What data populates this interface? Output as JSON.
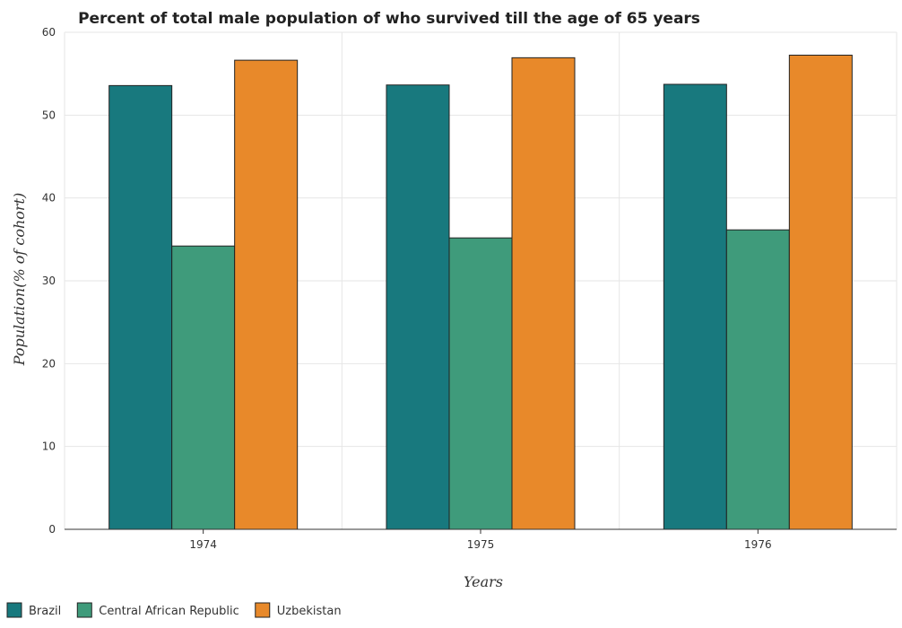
{
  "chart_data": {
    "type": "bar",
    "title": "Percent of total male population of who survived till the age of 65 years",
    "xlabel": "Years",
    "ylabel": "Population(% of cohort)",
    "categories": [
      "1974",
      "1975",
      "1976"
    ],
    "ylim": [
      0,
      60
    ],
    "yticks": [
      0,
      10,
      20,
      30,
      40,
      50,
      60
    ],
    "grid": true,
    "legend_position": "bottom-left",
    "series": [
      {
        "name": "Brazil",
        "color": "#18797e",
        "values": [
          53.57,
          53.64,
          53.72
        ]
      },
      {
        "name": "Central African Republic",
        "color": "#3f9b7b",
        "values": [
          34.2,
          35.18,
          36.15
        ]
      },
      {
        "name": "Uzbekistan",
        "color": "#e8892a",
        "values": [
          56.63,
          56.93,
          57.24
        ]
      }
    ]
  }
}
